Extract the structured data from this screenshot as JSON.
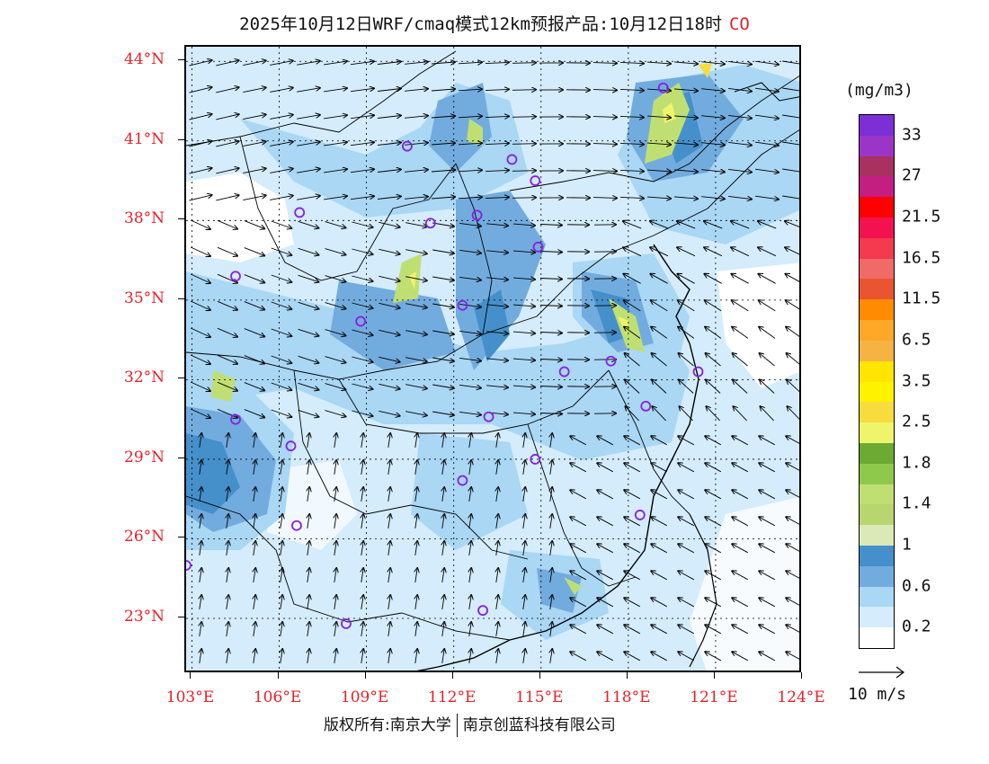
{
  "title": {
    "text": "2025年10月12日WRF/cmaq模式12km预报产品:10月12日18时",
    "species": "CO"
  },
  "lat_labels": [
    "44°N",
    "41°N",
    "38°N",
    "35°N",
    "32°N",
    "29°N",
    "26°N",
    "23°N"
  ],
  "lon_labels": [
    "103°E",
    "106°E",
    "109°E",
    "112°E",
    "115°E",
    "118°E",
    "121°E",
    "124°E"
  ],
  "legend": {
    "units": "(mg/m3)",
    "labels": [
      "33",
      "27",
      "21.5",
      "16.5",
      "11.5",
      "6.5",
      "3.5",
      "2.5",
      "1.8",
      "1.4",
      "1",
      "0.6",
      "0.2"
    ],
    "colors": [
      "#7d2fd6",
      "#9b35c8",
      "#a8315f",
      "#c41f80",
      "#ff0000",
      "#f3124f",
      "#f5394f",
      "#f06a68",
      "#ea5430",
      "#ff8c00",
      "#ffa828",
      "#f7b244",
      "#ffe500",
      "#fff200",
      "#f8dc3d",
      "#eef56a",
      "#6caa34",
      "#8ec94c",
      "#c0df73",
      "#b9d56e",
      "#dbe9b8",
      "#4590cb",
      "#72acde",
      "#a9d7f4",
      "#d4ecfb",
      "#ffffff"
    ],
    "colors_note": "top to bottom"
  },
  "wind_reference": {
    "label": "10 m/s"
  },
  "stations": [
    {
      "lon": 119.2,
      "lat": 43.0
    },
    {
      "lon": 110.4,
      "lat": 40.8
    },
    {
      "lon": 114.0,
      "lat": 40.3
    },
    {
      "lon": 114.8,
      "lat": 39.5
    },
    {
      "lon": 106.7,
      "lat": 38.3
    },
    {
      "lon": 111.2,
      "lat": 37.9
    },
    {
      "lon": 112.8,
      "lat": 38.2
    },
    {
      "lon": 114.9,
      "lat": 37.0
    },
    {
      "lon": 104.5,
      "lat": 35.9
    },
    {
      "lon": 112.3,
      "lat": 34.8
    },
    {
      "lon": 108.8,
      "lat": 34.2
    },
    {
      "lon": 115.8,
      "lat": 32.3
    },
    {
      "lon": 117.4,
      "lat": 32.7
    },
    {
      "lon": 120.4,
      "lat": 32.3
    },
    {
      "lon": 118.6,
      "lat": 31.0
    },
    {
      "lon": 104.5,
      "lat": 30.5
    },
    {
      "lon": 113.2,
      "lat": 30.6
    },
    {
      "lon": 106.4,
      "lat": 29.5
    },
    {
      "lon": 114.8,
      "lat": 29.0
    },
    {
      "lon": 112.3,
      "lat": 28.2
    },
    {
      "lon": 118.4,
      "lat": 26.9
    },
    {
      "lon": 106.6,
      "lat": 26.5
    },
    {
      "lon": 102.8,
      "lat": 25.0
    },
    {
      "lon": 113.0,
      "lat": 23.3
    },
    {
      "lon": 108.3,
      "lat": 22.8
    }
  ],
  "footer": {
    "left": "版权所有:南京大学",
    "right": "南京创蓝科技有限公司"
  }
}
